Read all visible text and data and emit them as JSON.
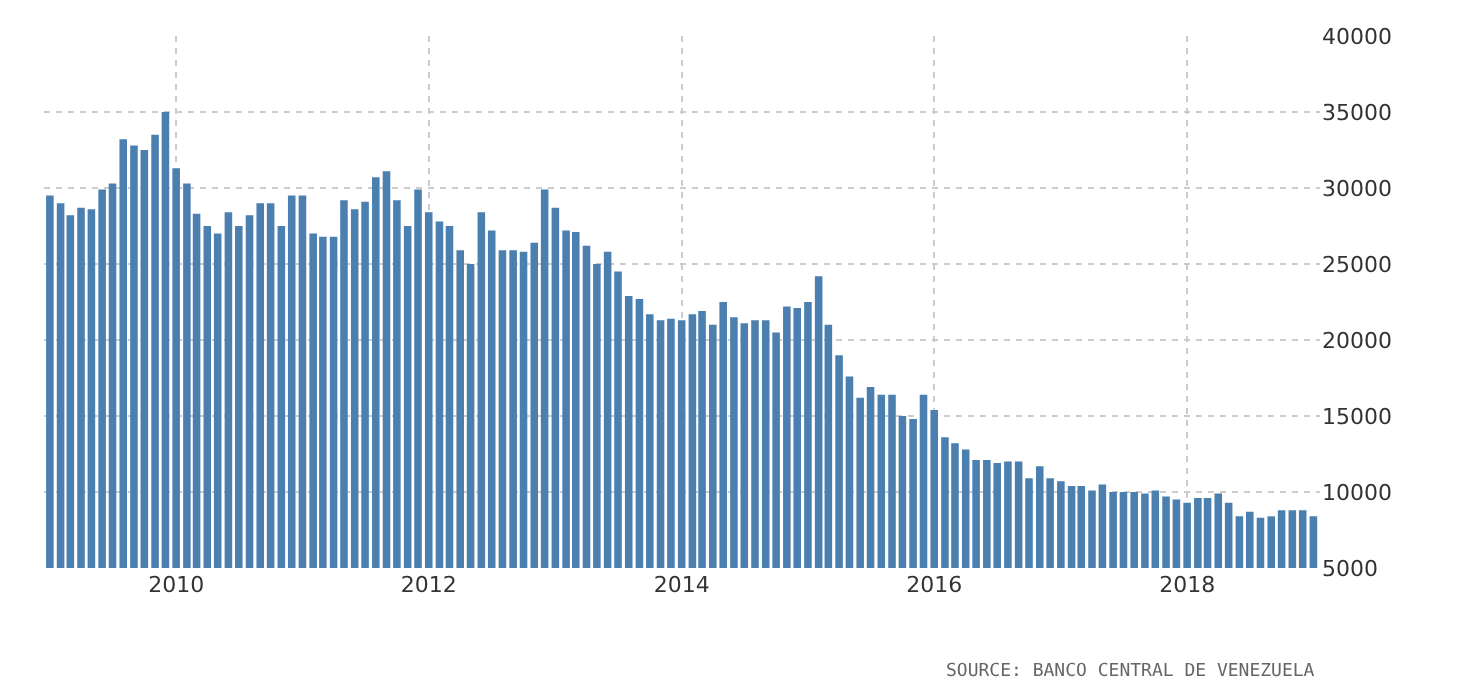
{
  "chart_data": {
    "type": "bar",
    "x": [
      "2009-01",
      "2009-02",
      "2009-03",
      "2009-04",
      "2009-05",
      "2009-06",
      "2009-07",
      "2009-08",
      "2009-09",
      "2009-10",
      "2009-11",
      "2009-12",
      "2010-01",
      "2010-02",
      "2010-03",
      "2010-04",
      "2010-05",
      "2010-06",
      "2010-07",
      "2010-08",
      "2010-09",
      "2010-10",
      "2010-11",
      "2010-12",
      "2011-01",
      "2011-02",
      "2011-03",
      "2011-04",
      "2011-05",
      "2011-06",
      "2011-07",
      "2011-08",
      "2011-09",
      "2011-10",
      "2011-11",
      "2011-12",
      "2012-01",
      "2012-02",
      "2012-03",
      "2012-04",
      "2012-05",
      "2012-06",
      "2012-07",
      "2012-08",
      "2012-09",
      "2012-10",
      "2012-11",
      "2012-12",
      "2013-01",
      "2013-02",
      "2013-03",
      "2013-04",
      "2013-05",
      "2013-06",
      "2013-07",
      "2013-08",
      "2013-09",
      "2013-10",
      "2013-11",
      "2013-12",
      "2014-01",
      "2014-02",
      "2014-03",
      "2014-04",
      "2014-05",
      "2014-06",
      "2014-07",
      "2014-08",
      "2014-09",
      "2014-10",
      "2014-11",
      "2014-12",
      "2015-01",
      "2015-02",
      "2015-03",
      "2015-04",
      "2015-05",
      "2015-06",
      "2015-07",
      "2015-08",
      "2015-09",
      "2015-10",
      "2015-11",
      "2015-12",
      "2016-01",
      "2016-02",
      "2016-03",
      "2016-04",
      "2016-05",
      "2016-06",
      "2016-07",
      "2016-08",
      "2016-09",
      "2016-10",
      "2016-11",
      "2016-12",
      "2017-01",
      "2017-02",
      "2017-03",
      "2017-04",
      "2017-05",
      "2017-06",
      "2017-07",
      "2017-08",
      "2017-09",
      "2017-10",
      "2017-11",
      "2017-12",
      "2018-01",
      "2018-02",
      "2018-03",
      "2018-04",
      "2018-05",
      "2018-06",
      "2018-07",
      "2018-08",
      "2018-09",
      "2018-10",
      "2018-11",
      "2018-12",
      "2019-01"
    ],
    "series": [
      {
        "color": "#4a7fb0",
        "values": [
          29500,
          29000,
          28200,
          28700,
          28600,
          29900,
          30300,
          33200,
          32800,
          32500,
          33500,
          35000,
          31300,
          30300,
          28300,
          27500,
          27000,
          28400,
          27500,
          28200,
          29000,
          29000,
          27500,
          29500,
          29500,
          27000,
          26800,
          26800,
          29200,
          28600,
          29100,
          30700,
          31100,
          29200,
          27500,
          29900,
          28400,
          27800,
          27500,
          25900,
          25000,
          28400,
          27200,
          25900,
          25900,
          25800,
          26400,
          29900,
          28700,
          27200,
          27100,
          26200,
          25000,
          25800,
          24500,
          22900,
          22700,
          21700,
          21300,
          21400,
          21300,
          21700,
          21900,
          21000,
          22500,
          21500,
          21100,
          21300,
          21300,
          20500,
          22200,
          22100,
          22500,
          24200,
          21000,
          19000,
          17600,
          16200,
          16900,
          16400,
          16400,
          15000,
          14800,
          16400,
          15400,
          13600,
          13200,
          12800,
          12100,
          12100,
          11900,
          12000,
          12000,
          10900,
          11700,
          10900,
          10700,
          10400,
          10400,
          10100,
          10500,
          10000,
          10000,
          10000,
          9900,
          10100,
          9700,
          9500,
          9300,
          9600,
          9600,
          9900,
          9300,
          8400,
          8700,
          8300,
          8400,
          8800,
          8800,
          8800,
          8400
        ]
      }
    ],
    "xlim": [
      "2008-12-15",
      "2019-01-20"
    ],
    "xticks": [
      {
        "value": "2010-01-01",
        "label": "2010"
      },
      {
        "value": "2012-01-01",
        "label": "2012"
      },
      {
        "value": "2014-01-01",
        "label": "2014"
      },
      {
        "value": "2016-01-01",
        "label": "2016"
      },
      {
        "value": "2018-01-01",
        "label": "2018"
      }
    ],
    "ylim": [
      5000,
      40000
    ],
    "yticks": [
      5000,
      10000,
      15000,
      20000,
      25000,
      30000,
      35000,
      40000
    ],
    "grid": true,
    "annotations": [
      "SOURCE: BANCO CENTRAL DE VENEZUELA"
    ]
  }
}
